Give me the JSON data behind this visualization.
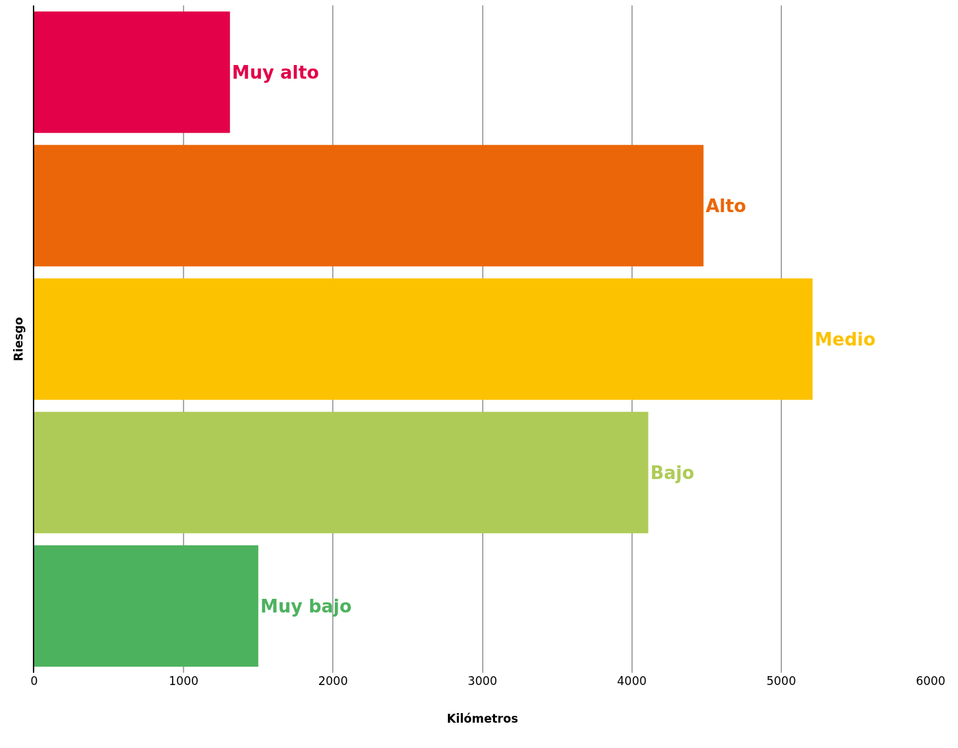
{
  "chart_data": {
    "type": "bar",
    "orientation": "horizontal",
    "xlabel": "Kilómetros",
    "ylabel": "Riesgo",
    "categories": [
      "Muy alto",
      "Alto",
      "Medio",
      "Bajo",
      "Muy bajo"
    ],
    "values": [
      1310,
      4480,
      5210,
      4110,
      1500
    ],
    "colors": [
      "#e3024a",
      "#eb6608",
      "#fcc200",
      "#afcb57",
      "#4db25e"
    ],
    "xlim": [
      0,
      6000
    ],
    "xticks": [
      0,
      1000,
      2000,
      3000,
      4000,
      5000,
      6000
    ],
    "grid": "x",
    "tick_labels": "x",
    "legend": false
  }
}
